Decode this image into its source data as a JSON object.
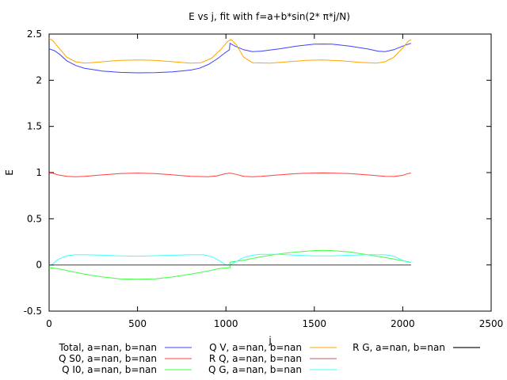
{
  "chart_data": {
    "type": "line",
    "title": "E vs j, fit with f=a+b*sin(2* π*j/N)",
    "xlabel": "j",
    "ylabel": "E",
    "xlim": [
      0,
      2500
    ],
    "ylim": [
      -0.5,
      2.5
    ],
    "x_ticks": [
      "0",
      "500",
      "1000",
      "1500",
      "2000",
      "2500"
    ],
    "y_ticks": [
      "-0.5",
      "0",
      "0.5",
      "1",
      "1.5",
      "2",
      "2.5"
    ],
    "grid": false,
    "legend_position": "bottom",
    "series": [
      {
        "name": "Total, a=nan, b=nan",
        "color": "#4040ff",
        "points": [
          [
            0,
            2.34
          ],
          [
            30,
            2.32
          ],
          [
            60,
            2.28
          ],
          [
            100,
            2.21
          ],
          [
            150,
            2.16
          ],
          [
            200,
            2.13
          ],
          [
            300,
            2.1
          ],
          [
            400,
            2.085
          ],
          [
            500,
            2.08
          ],
          [
            600,
            2.082
          ],
          [
            700,
            2.09
          ],
          [
            800,
            2.11
          ],
          [
            850,
            2.13
          ],
          [
            900,
            2.17
          ],
          [
            950,
            2.23
          ],
          [
            990,
            2.29
          ],
          [
            1020,
            2.33
          ],
          [
            1023,
            2.4
          ],
          [
            1050,
            2.37
          ],
          [
            1100,
            2.33
          ],
          [
            1150,
            2.31
          ],
          [
            1200,
            2.315
          ],
          [
            1300,
            2.34
          ],
          [
            1400,
            2.37
          ],
          [
            1500,
            2.39
          ],
          [
            1550,
            2.392
          ],
          [
            1600,
            2.39
          ],
          [
            1700,
            2.37
          ],
          [
            1800,
            2.34
          ],
          [
            1860,
            2.315
          ],
          [
            1900,
            2.31
          ],
          [
            1950,
            2.33
          ],
          [
            2000,
            2.37
          ],
          [
            2047,
            2.4
          ]
        ]
      },
      {
        "name": "Q S0, a=nan, b=nan",
        "color": "#ff4040",
        "points": [
          [
            0,
            0.995
          ],
          [
            20,
            0.995
          ],
          [
            50,
            0.975
          ],
          [
            100,
            0.96
          ],
          [
            150,
            0.955
          ],
          [
            200,
            0.96
          ],
          [
            300,
            0.975
          ],
          [
            400,
            0.99
          ],
          [
            500,
            0.995
          ],
          [
            600,
            0.99
          ],
          [
            700,
            0.975
          ],
          [
            800,
            0.96
          ],
          [
            900,
            0.955
          ],
          [
            950,
            0.965
          ],
          [
            990,
            0.985
          ],
          [
            1023,
            0.995
          ],
          [
            1060,
            0.98
          ],
          [
            1100,
            0.96
          ],
          [
            1150,
            0.955
          ],
          [
            1200,
            0.96
          ],
          [
            1300,
            0.975
          ],
          [
            1400,
            0.99
          ],
          [
            1550,
            0.997
          ],
          [
            1700,
            0.99
          ],
          [
            1800,
            0.975
          ],
          [
            1900,
            0.96
          ],
          [
            1950,
            0.958
          ],
          [
            2000,
            0.97
          ],
          [
            2030,
            0.99
          ],
          [
            2047,
            0.995
          ]
        ]
      },
      {
        "name": "Q I0, a=nan, b=nan",
        "color": "#40ff40",
        "points": [
          [
            0,
            -0.03
          ],
          [
            50,
            -0.04
          ],
          [
            100,
            -0.06
          ],
          [
            200,
            -0.1
          ],
          [
            300,
            -0.13
          ],
          [
            400,
            -0.15
          ],
          [
            500,
            -0.155
          ],
          [
            600,
            -0.15
          ],
          [
            700,
            -0.13
          ],
          [
            800,
            -0.1
          ],
          [
            900,
            -0.065
          ],
          [
            960,
            -0.04
          ],
          [
            1000,
            -0.03
          ],
          [
            1023,
            -0.03
          ],
          [
            1023,
            0.03
          ],
          [
            1100,
            0.05
          ],
          [
            1200,
            0.09
          ],
          [
            1300,
            0.12
          ],
          [
            1400,
            0.14
          ],
          [
            1500,
            0.155
          ],
          [
            1550,
            0.158
          ],
          [
            1600,
            0.155
          ],
          [
            1700,
            0.14
          ],
          [
            1800,
            0.11
          ],
          [
            1900,
            0.08
          ],
          [
            2000,
            0.045
          ],
          [
            2047,
            0.03
          ]
        ]
      },
      {
        "name": "Q V, a=nan, b=nan",
        "color": "#ffa500",
        "points": [
          [
            0,
            2.45
          ],
          [
            20,
            2.43
          ],
          [
            50,
            2.36
          ],
          [
            100,
            2.25
          ],
          [
            150,
            2.2
          ],
          [
            200,
            2.185
          ],
          [
            300,
            2.2
          ],
          [
            400,
            2.215
          ],
          [
            500,
            2.22
          ],
          [
            600,
            2.215
          ],
          [
            700,
            2.2
          ],
          [
            800,
            2.185
          ],
          [
            860,
            2.19
          ],
          [
            920,
            2.24
          ],
          [
            970,
            2.33
          ],
          [
            1010,
            2.42
          ],
          [
            1030,
            2.44
          ],
          [
            1060,
            2.38
          ],
          [
            1100,
            2.25
          ],
          [
            1150,
            2.19
          ],
          [
            1250,
            2.185
          ],
          [
            1350,
            2.2
          ],
          [
            1450,
            2.215
          ],
          [
            1550,
            2.22
          ],
          [
            1650,
            2.21
          ],
          [
            1750,
            2.195
          ],
          [
            1850,
            2.185
          ],
          [
            1900,
            2.2
          ],
          [
            1950,
            2.25
          ],
          [
            2000,
            2.35
          ],
          [
            2030,
            2.42
          ],
          [
            2047,
            2.44
          ]
        ]
      },
      {
        "name": "R Q, a=nan, b=nan",
        "color": "#c06060",
        "points": []
      },
      {
        "name": "Q G, a=nan, b=nan",
        "color": "#40ffff",
        "points": [
          [
            0,
            0.0
          ],
          [
            20,
            0.01
          ],
          [
            50,
            0.06
          ],
          [
            100,
            0.1
          ],
          [
            150,
            0.11
          ],
          [
            200,
            0.11
          ],
          [
            300,
            0.105
          ],
          [
            400,
            0.098
          ],
          [
            500,
            0.095
          ],
          [
            600,
            0.1
          ],
          [
            700,
            0.105
          ],
          [
            800,
            0.11
          ],
          [
            870,
            0.11
          ],
          [
            920,
            0.09
          ],
          [
            960,
            0.05
          ],
          [
            1000,
            0.0
          ],
          [
            1023,
            0.0
          ],
          [
            1060,
            0.04
          ],
          [
            1100,
            0.08
          ],
          [
            1150,
            0.105
          ],
          [
            1200,
            0.115
          ],
          [
            1300,
            0.115
          ],
          [
            1400,
            0.105
          ],
          [
            1500,
            0.098
          ],
          [
            1600,
            0.098
          ],
          [
            1700,
            0.105
          ],
          [
            1800,
            0.11
          ],
          [
            1900,
            0.11
          ],
          [
            1950,
            0.095
          ],
          [
            2000,
            0.05
          ],
          [
            2030,
            0.03
          ],
          [
            2047,
            0.03
          ]
        ]
      },
      {
        "name": "R G, a=nan, b=nan",
        "color": "#404040",
        "points": [
          [
            0,
            0
          ],
          [
            2047,
            0
          ]
        ]
      }
    ]
  }
}
